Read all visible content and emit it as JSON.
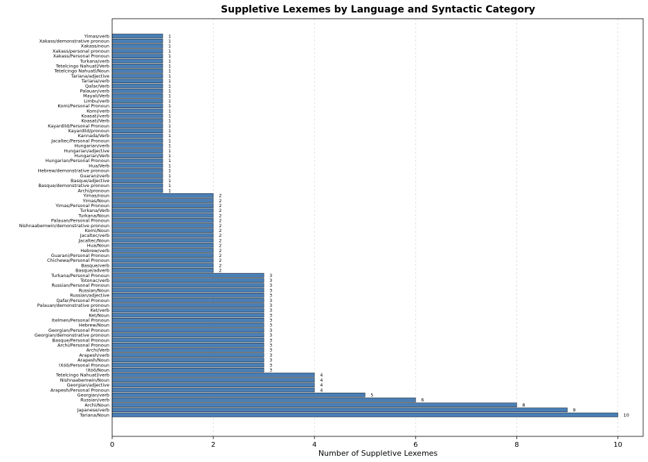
{
  "chart_data": {
    "type": "bar",
    "orientation": "horizontal",
    "title": "Suppletive Lexemes by Language and Syntactic Category",
    "xlabel": "Number of Suppletive Lexemes",
    "ylabel": "",
    "xlim": [
      0,
      10.5
    ],
    "xticks": [
      0,
      2,
      4,
      6,
      8,
      10
    ],
    "grid": "x-dashed",
    "bar_color": "#4a7fb5",
    "edge_color": "#1f2a36",
    "categories": [
      "Yimas/verb",
      "Xakass/demonstrative pronoun",
      "Xakass/noun",
      "Xakass/personal pronoun",
      "Xakass/Personal Pronoun",
      "Turkana/verb",
      "Tetelcingo Nahuatl/Verb",
      "Tetelcingo Nahuatl/Noun",
      "Tariana/adjective",
      "Tariana/verb",
      "Qafar/Verb",
      "Palauan/verb",
      "Mayali/Verb",
      "Limbu/verb",
      "Komi/Personal Pronoun",
      "Komi/verb",
      "Koasati/verb",
      "Koasati/Verb",
      "Kayardild/Personal Pronoun",
      "Kayardild/pronoun",
      "Kannada/Verb",
      "Jacaltec/Personal Pronoun",
      "Hungarian/verb",
      "Hungarian/adjective",
      "Hungarian/Verb",
      "Hungarian/Personal Pronoun",
      "Hua/Verb",
      "Hebrew/demonstrative pronoun",
      "Guarani/verb",
      "Basque/adjective",
      "Basque/demonstrative pronoun",
      "Archi/pronoun",
      "Yimas/noun",
      "Yimas/Noun",
      "Yimas/Personal Pronoun",
      "Turkana/Verb",
      "Turkana/Noun",
      "Palauan/Personal Pronoun",
      "Nishnaabemwin/demonstrative pronoun",
      "Komi/Noun",
      "Jacaltec/verb",
      "Jacaltec/Noun",
      "Hua/Noun",
      "Hebrew/verb",
      "Guarani/Personal Pronoun",
      "Chichewa/Personal Pronoun",
      "Basque/verb",
      "Basque/adverb",
      "Turkana/Personal Pronoun",
      "Totonac/verb",
      "Russian/Personal Pronoun",
      "Russian/Noun",
      "Russian/adjective",
      "Qafar/Personal Pronoun",
      "Palauan/demonstrative pronoun",
      "Ket/verb",
      "Ket/Noun",
      "Itelmen/Personal Pronoun",
      "Hebrew/Noun",
      "Georgian/Personal Pronoun",
      "Georgian/demonstrative pronoun",
      "Basque/Personal Pronoun",
      "Archi/Personal Pronoun",
      "Archi/Verb",
      "Arapesh/verb",
      "Arapesh/Noun",
      "!Xóõ/Personal Pronoun",
      "!Xóõ/Noun",
      "Tetelcingo Nahuatl/verb",
      "Nishnaabemwin/Noun",
      "Georgian/adjective",
      "Arapesh/Personal Pronoun",
      "Georgian/verb",
      "Russian/verb",
      "Archi/Noun",
      "Japanese/verb",
      "Tariana/Noun"
    ],
    "values": [
      1,
      1,
      1,
      1,
      1,
      1,
      1,
      1,
      1,
      1,
      1,
      1,
      1,
      1,
      1,
      1,
      1,
      1,
      1,
      1,
      1,
      1,
      1,
      1,
      1,
      1,
      1,
      1,
      1,
      1,
      1,
      1,
      2,
      2,
      2,
      2,
      2,
      2,
      2,
      2,
      2,
      2,
      2,
      2,
      2,
      2,
      2,
      2,
      3,
      3,
      3,
      3,
      3,
      3,
      3,
      3,
      3,
      3,
      3,
      3,
      3,
      3,
      3,
      3,
      3,
      3,
      3,
      3,
      4,
      4,
      4,
      4,
      5,
      6,
      8,
      9,
      10
    ]
  }
}
